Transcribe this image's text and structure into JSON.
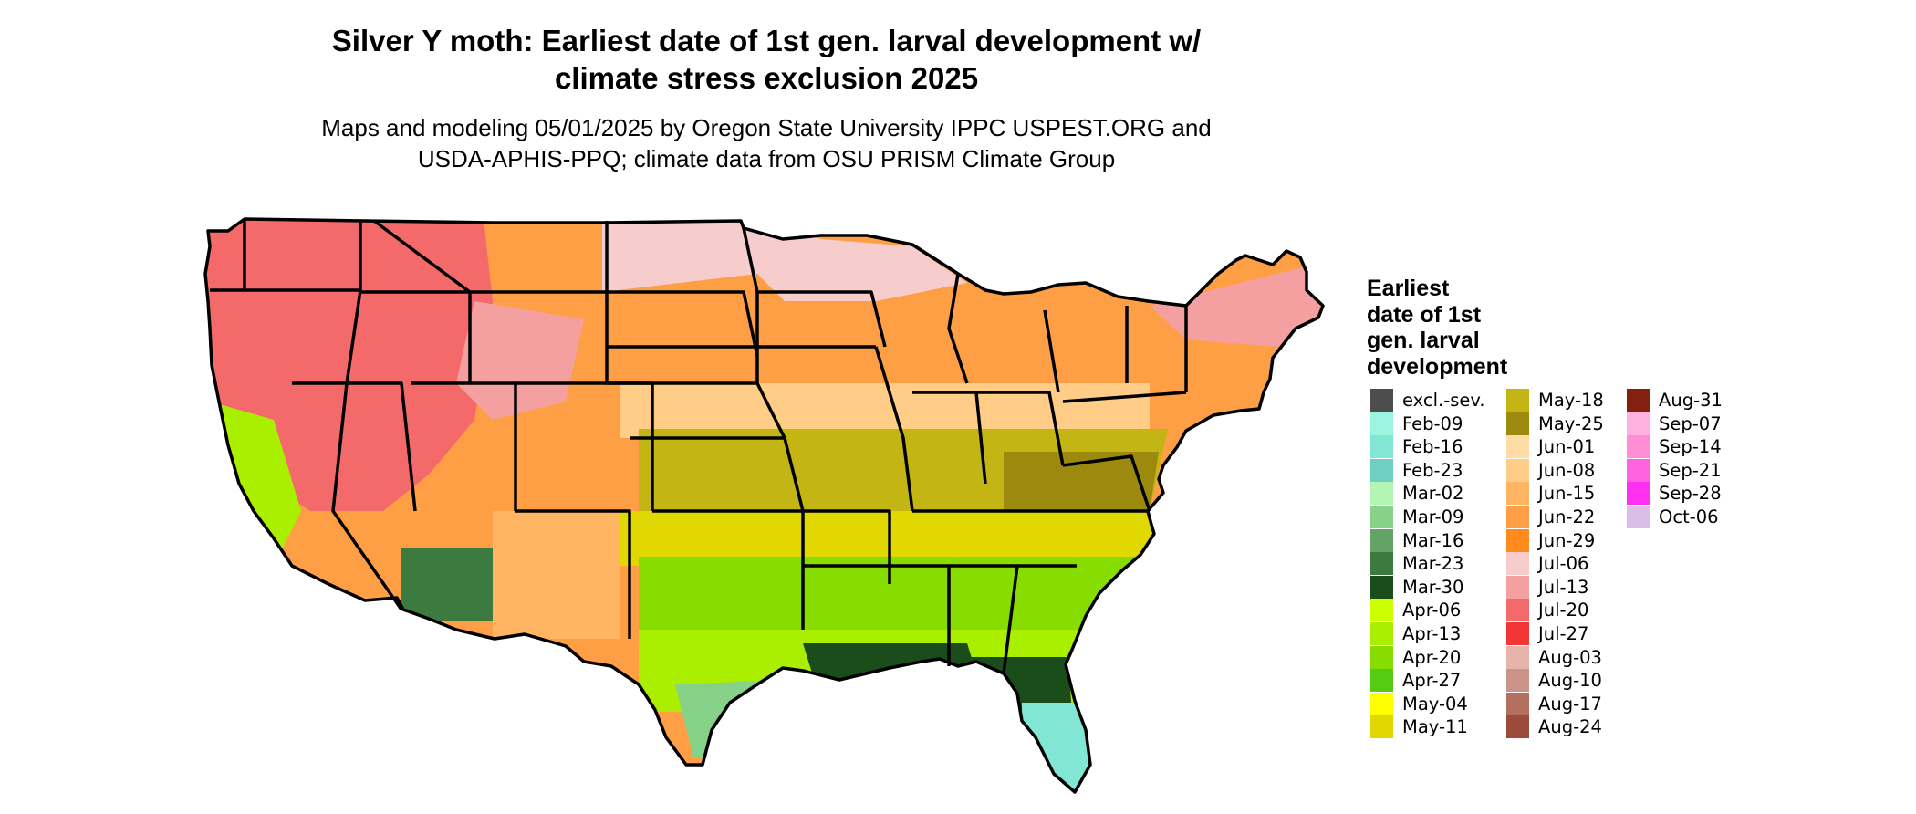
{
  "title": "Silver Y moth: Earliest date of 1st gen. larval development w/\nclimate stress exclusion 2025",
  "subtitle": "Maps and modeling 05/01/2025 by Oregon State University IPPC USPEST.ORG and\nUSDA-APHIS-PPQ; climate data from OSU PRISM Climate Group",
  "legend": {
    "title": "Earliest\ndate of 1st\ngen. larval\ndevelopment",
    "items": [
      {
        "label": "excl.-sev.",
        "color": "#4d4d4d"
      },
      {
        "label": "Feb-09",
        "color": "#9cf5e1"
      },
      {
        "label": "Feb-16",
        "color": "#82e6d4"
      },
      {
        "label": "Feb-23",
        "color": "#6ecfc2"
      },
      {
        "label": "Mar-02",
        "color": "#b4f5b4"
      },
      {
        "label": "Mar-09",
        "color": "#86d288"
      },
      {
        "label": "Mar-16",
        "color": "#63a466"
      },
      {
        "label": "Mar-23",
        "color": "#3d7a40"
      },
      {
        "label": "Mar-30",
        "color": "#1a4d1a"
      },
      {
        "label": "Apr-06",
        "color": "#ccff00"
      },
      {
        "label": "Apr-13",
        "color": "#aaee00"
      },
      {
        "label": "Apr-20",
        "color": "#88dd00"
      },
      {
        "label": "Apr-27",
        "color": "#55cc11"
      },
      {
        "label": "May-04",
        "color": "#ffff00"
      },
      {
        "label": "May-11",
        "color": "#e0d800"
      },
      {
        "label": "May-18",
        "color": "#c2b514"
      },
      {
        "label": "May-25",
        "color": "#9c8a0e"
      },
      {
        "label": "Jun-01",
        "color": "#ffdca3"
      },
      {
        "label": "Jun-08",
        "color": "#ffcd87"
      },
      {
        "label": "Jun-15",
        "color": "#ffb561"
      },
      {
        "label": "Jun-22",
        "color": "#ff9f45"
      },
      {
        "label": "Jun-29",
        "color": "#ff8a1e"
      },
      {
        "label": "Jul-06",
        "color": "#f6cccc"
      },
      {
        "label": "Jul-13",
        "color": "#f5a0a0"
      },
      {
        "label": "Jul-20",
        "color": "#f46a6a"
      },
      {
        "label": "Jul-27",
        "color": "#f43535"
      },
      {
        "label": "Aug-03",
        "color": "#e6b4aa"
      },
      {
        "label": "Aug-10",
        "color": "#cc9488"
      },
      {
        "label": "Aug-17",
        "color": "#b36f60"
      },
      {
        "label": "Aug-24",
        "color": "#9c4a3a"
      },
      {
        "label": "Aug-31",
        "color": "#842010"
      },
      {
        "label": "Sep-07",
        "color": "#ffb1df"
      },
      {
        "label": "Sep-14",
        "color": "#ff8ed6"
      },
      {
        "label": "Sep-21",
        "color": "#ff62df"
      },
      {
        "label": "Sep-28",
        "color": "#ff30f0"
      },
      {
        "label": "Oct-06",
        "color": "#dcbce8"
      }
    ]
  }
}
